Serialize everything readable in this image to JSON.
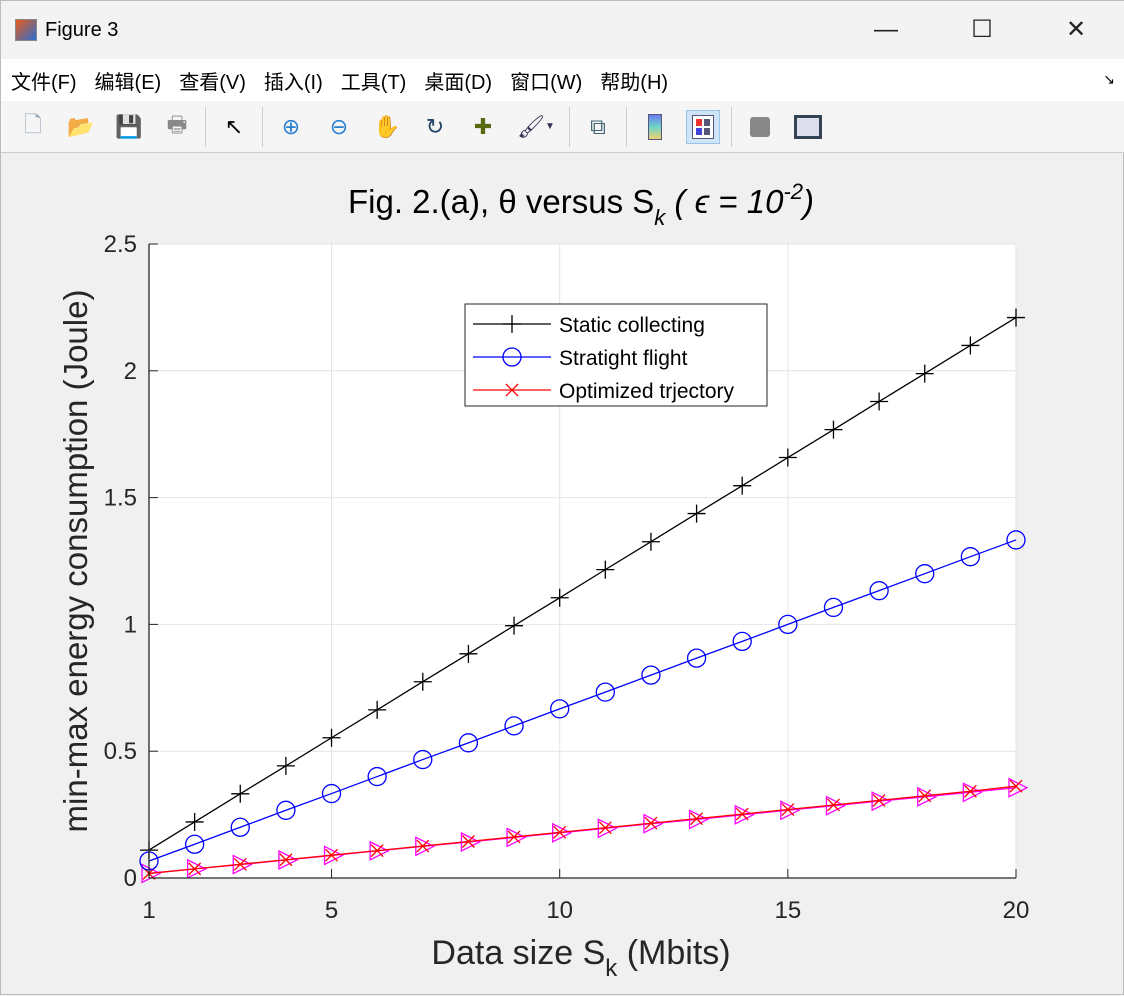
{
  "window": {
    "title": "Figure 3",
    "minimize": "—",
    "maximize": "☐",
    "close": "✕"
  },
  "menu": [
    "文件(F)",
    "编辑(E)",
    "查看(V)",
    "插入(I)",
    "工具(T)",
    "桌面(D)",
    "窗口(W)",
    "帮助(H)"
  ],
  "toolbar": [
    "new-file",
    "open-folder",
    "save",
    "print",
    "pointer",
    "zoom-in",
    "zoom-out",
    "pan-hand",
    "rotate-3d",
    "data-cursor",
    "brush",
    "link-plot",
    "colorbar",
    "legend",
    "hide-plot-tools",
    "show-plot-tools"
  ],
  "chart_data": {
    "type": "line",
    "title": "Fig. 2.(a), θ versus  S",
    "title_sub": "k",
    "title_tail": " ( ϵ = 10",
    "title_sup": "-2",
    "title_end": ")",
    "xlabel": "Data size S",
    "xlabel_sub": "k",
    "xlabel_tail": " (Mbits)",
    "ylabel": "min-max energy consumption (Joule)",
    "xlim": [
      1,
      20
    ],
    "ylim": [
      0,
      2.5
    ],
    "xticks": [
      1,
      5,
      10,
      15,
      20
    ],
    "yticks": [
      0,
      0.5,
      1,
      1.5,
      2,
      2.5
    ],
    "grid": true,
    "legend_position": "top-center",
    "x": [
      1,
      2,
      3,
      4,
      5,
      6,
      7,
      8,
      9,
      10,
      11,
      12,
      13,
      14,
      15,
      16,
      17,
      18,
      19,
      20
    ],
    "series": [
      {
        "name": "Static collecting",
        "color": "#000000",
        "marker": "plus",
        "in_legend": true,
        "values": [
          0.11,
          0.221,
          0.332,
          0.442,
          0.553,
          0.663,
          0.774,
          0.884,
          0.995,
          1.105,
          1.216,
          1.326,
          1.437,
          1.547,
          1.658,
          1.768,
          1.879,
          1.989,
          2.1,
          2.21
        ]
      },
      {
        "name": "Stratight flight",
        "color": "#0000ff",
        "marker": "circle",
        "in_legend": true,
        "values": [
          0.067,
          0.133,
          0.2,
          0.267,
          0.333,
          0.4,
          0.467,
          0.533,
          0.6,
          0.667,
          0.733,
          0.8,
          0.867,
          0.933,
          1.0,
          1.067,
          1.133,
          1.2,
          1.267,
          1.333
        ]
      },
      {
        "name": "Optimized trjectory",
        "color": "#ff0000",
        "marker": "x",
        "in_legend": true,
        "values": [
          0.018,
          0.036,
          0.054,
          0.072,
          0.09,
          0.108,
          0.126,
          0.144,
          0.162,
          0.18,
          0.198,
          0.216,
          0.234,
          0.252,
          0.27,
          0.288,
          0.306,
          0.324,
          0.342,
          0.362
        ]
      },
      {
        "name": "",
        "color": "#ff00ff",
        "marker": "triangle-right",
        "in_legend": false,
        "values": [
          0.018,
          0.036,
          0.053,
          0.071,
          0.089,
          0.107,
          0.125,
          0.142,
          0.16,
          0.178,
          0.196,
          0.214,
          0.231,
          0.249,
          0.267,
          0.285,
          0.303,
          0.32,
          0.338,
          0.356
        ]
      }
    ]
  }
}
